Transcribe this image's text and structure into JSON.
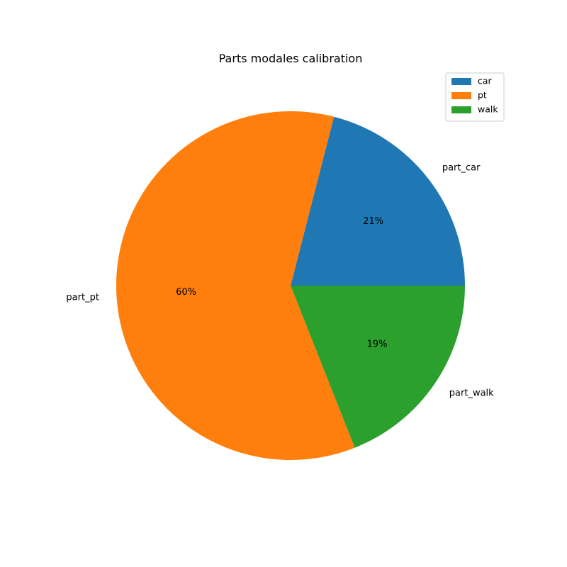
{
  "chart_data": {
    "type": "pie",
    "title": "Parts modales calibration",
    "slices": [
      {
        "label": "part_car",
        "legend": "car",
        "value": 21,
        "pct_label": "21%",
        "color": "#1f77b4"
      },
      {
        "label": "part_pt",
        "legend": "pt",
        "value": 60,
        "pct_label": "60%",
        "color": "#ff7f0e"
      },
      {
        "label": "part_walk",
        "legend": "walk",
        "value": 19,
        "pct_label": "19%",
        "color": "#2ca02c"
      }
    ],
    "start_angle_deg": 0,
    "direction": "counterclockwise",
    "legend_position": "top-right"
  }
}
